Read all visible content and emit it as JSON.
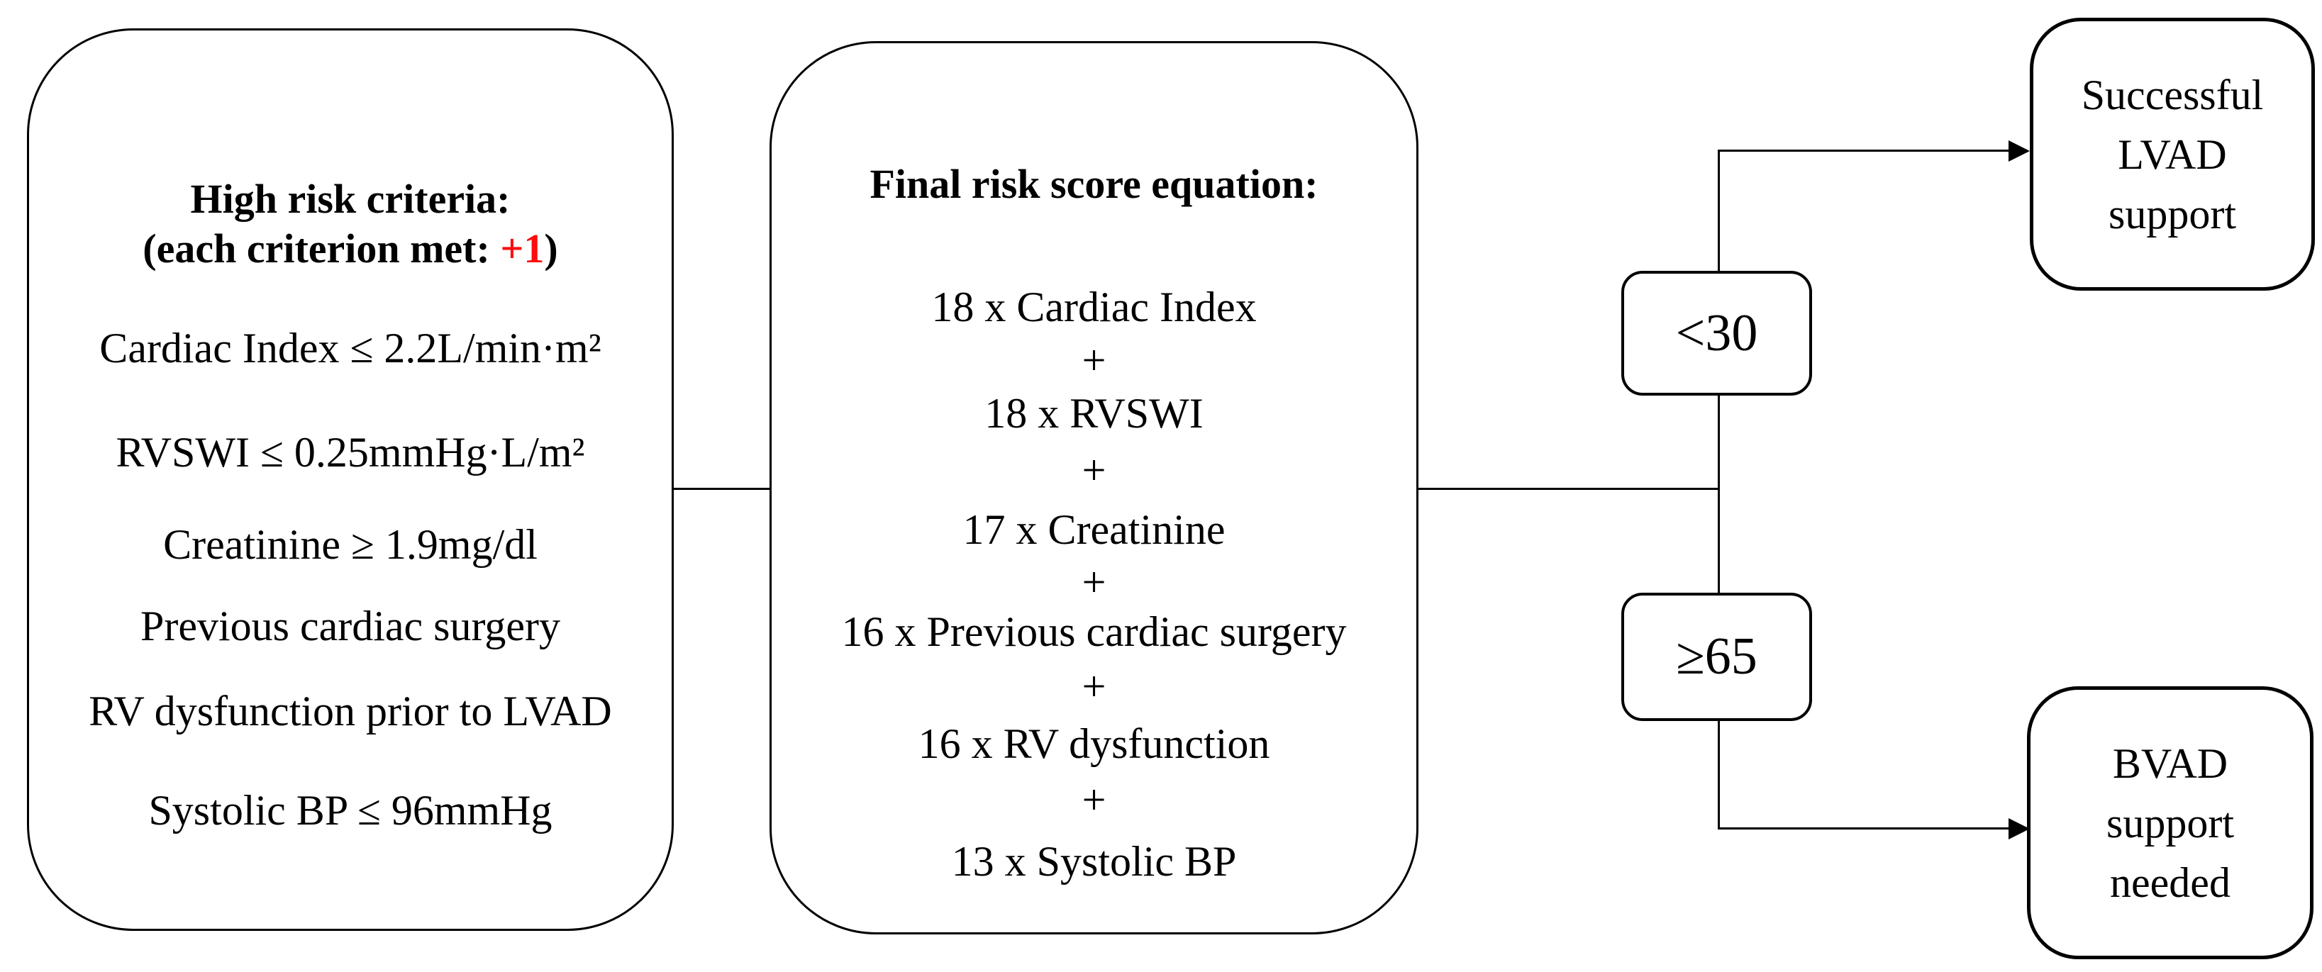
{
  "colors": {
    "background": "#ffffff",
    "line": "#000000",
    "text": "#000000",
    "highlight_red": "#fb0e0e"
  },
  "left_box": {
    "title_line1": "High risk criteria:",
    "title_line2_prefix": "(each criterion met: ",
    "title_line2_highlight": "+1",
    "title_line2_suffix": ")",
    "criteria": [
      "Cardiac Index ≤ 2.2L/min·m²",
      "RVSWI ≤ 0.25mmHg·L/m²",
      "Creatinine ≥ 1.9mg/dl",
      "Previous cardiac surgery",
      "RV dysfunction prior to LVAD",
      "Systolic BP ≤ 96mmHg"
    ]
  },
  "middle_box": {
    "title": "Final risk score equation:",
    "operator": "+",
    "terms": [
      "18 x Cardiac Index",
      "18 x RVSWI",
      "17 x Creatinine",
      "16 x Previous cardiac surgery",
      "16 x RV dysfunction",
      "13 x Systolic BP"
    ]
  },
  "decision": {
    "upper_label": "<30",
    "lower_label": "≥65"
  },
  "outcomes": {
    "success": {
      "lines": [
        "Successful",
        "LVAD",
        "support"
      ]
    },
    "bvad": {
      "lines": [
        "BVAD",
        "support",
        "needed"
      ]
    }
  }
}
